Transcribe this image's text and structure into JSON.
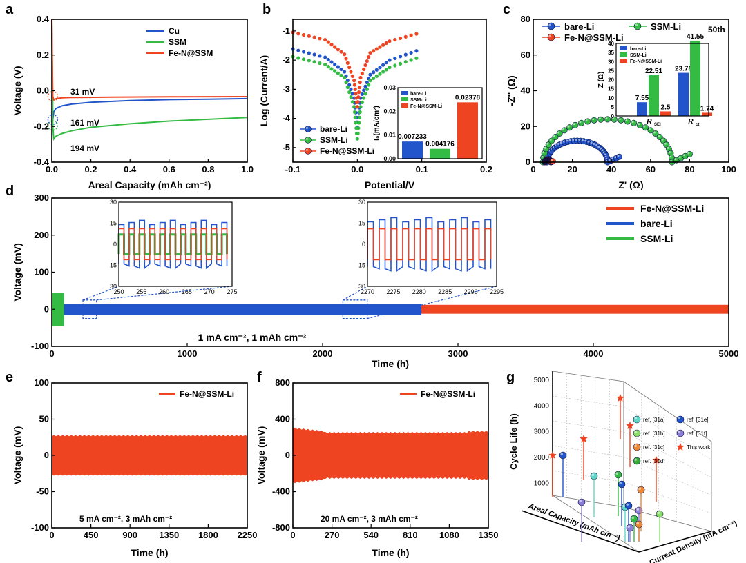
{
  "colors": {
    "cu": "#2255cc",
    "bare": "#2255cc",
    "ssm": "#33bb44",
    "fen": "#ee4422",
    "axis": "#000000"
  },
  "chart_data": [
    {
      "panel": "a",
      "type": "line",
      "xlabel": "Areal Capacity (mAh cm⁻²)",
      "ylabel": "Voltage (V)",
      "xlim": [
        0,
        1.0
      ],
      "ylim": [
        -0.4,
        0.4
      ],
      "xticks": [
        "0.0",
        "0.2",
        "0.4",
        "0.6",
        "0.8",
        "1.0"
      ],
      "yticks": [
        "-0.4",
        "-0.2",
        "0.0",
        "0.2",
        "0.4"
      ],
      "series": [
        {
          "name": "Cu",
          "x": [
            0,
            0.005,
            0.01,
            0.02,
            0.05,
            0.1,
            0.2,
            0.4,
            0.6,
            0.8,
            1.0
          ],
          "y": [
            0.4,
            -0.161,
            -0.12,
            -0.1,
            -0.085,
            -0.075,
            -0.065,
            -0.055,
            -0.05,
            -0.047,
            -0.044
          ]
        },
        {
          "name": "SSM",
          "x": [
            0,
            0.005,
            0.01,
            0.02,
            0.05,
            0.1,
            0.2,
            0.4,
            0.6,
            0.8,
            1.0
          ],
          "y": [
            0.4,
            -0.194,
            -0.27,
            -0.255,
            -0.24,
            -0.225,
            -0.205,
            -0.185,
            -0.17,
            -0.16,
            -0.15
          ]
        },
        {
          "name": "Fe-N@SSM",
          "x": [
            0,
            0.005,
            0.01,
            0.02,
            0.05,
            0.1,
            0.3,
            0.6,
            1.0
          ],
          "y": [
            0.4,
            -0.031,
            -0.05,
            -0.045,
            -0.04,
            -0.038,
            -0.036,
            -0.034,
            -0.033
          ]
        }
      ],
      "annotations": [
        "31 mV",
        "161 mV",
        "194 mV"
      ]
    },
    {
      "panel": "b",
      "type": "line",
      "xlabel": "Potential/V",
      "ylabel": "Log (Current/A)",
      "xlim": [
        -0.1,
        0.2
      ],
      "ylim": [
        -5.5,
        -0.6
      ],
      "xticks": [
        "-0.1",
        "0.0",
        "0.1",
        "0.2"
      ],
      "yticks": [
        "-1",
        "-2",
        "-3",
        "-4",
        "-5"
      ],
      "series": [
        {
          "name": "bare-Li",
          "x": [
            -0.1,
            -0.05,
            -0.02,
            -0.005,
            0,
            0.005,
            0.02,
            0.05,
            0.1
          ],
          "y": [
            -1.62,
            -1.9,
            -2.4,
            -3.3,
            -4.3,
            -3.3,
            -2.5,
            -2.0,
            -1.62
          ]
        },
        {
          "name": "SSM-Li",
          "x": [
            -0.1,
            -0.05,
            -0.02,
            -0.005,
            0,
            0.005,
            0.02,
            0.05,
            0.1
          ],
          "y": [
            -1.88,
            -2.15,
            -2.6,
            -3.6,
            -4.7,
            -3.6,
            -2.7,
            -2.25,
            -1.87
          ]
        },
        {
          "name": "Fe-N@SSM-Li",
          "x": [
            -0.1,
            -0.05,
            -0.02,
            -0.005,
            0,
            0.005,
            0.02,
            0.05,
            0.1
          ],
          "y": [
            -1.05,
            -1.3,
            -1.8,
            -2.7,
            -3.6,
            -2.6,
            -1.75,
            -1.35,
            -1.05
          ]
        }
      ],
      "inset": {
        "type": "bar",
        "ylabel": "I₀(mA/cm²)",
        "ylim": [
          0,
          0.03
        ],
        "yticks": [
          "0.00",
          "0.01",
          "0.02",
          "0.03"
        ],
        "categories": [
          "bare-Li",
          "SSM-Li",
          "Fe-N@SSM-Li"
        ],
        "values": [
          0.007233,
          0.004176,
          0.02378
        ],
        "labels": [
          "0.007233",
          "0.004176",
          "0.02378"
        ]
      }
    },
    {
      "panel": "c",
      "type": "scatter",
      "xlabel": "Z' (Ω)",
      "ylabel": "-Z'' (Ω)",
      "annotation": "50th",
      "xlim": [
        0,
        100
      ],
      "ylim": [
        0,
        80
      ],
      "xticks": [
        "0",
        "20",
        "40",
        "60",
        "80",
        "100"
      ],
      "yticks": [
        "0",
        "20",
        "40",
        "60",
        "80"
      ],
      "series": [
        {
          "name": "bare-Li",
          "arc": {
            "x0": 7,
            "x1": 38,
            "tail": 6
          }
        },
        {
          "name": "SSM-Li",
          "arc": {
            "x0": 5,
            "x1": 71,
            "tail": 9
          }
        },
        {
          "name": "Fe-N@SSM-Li",
          "arc": {
            "x0": 6,
            "x1": 9,
            "tail": 1
          }
        }
      ],
      "inset": {
        "type": "bar",
        "ylabel": "Z (Ω)",
        "ylim": [
          0,
          40
        ],
        "yticks": [
          "0",
          "5",
          "10",
          "15",
          "20",
          "25",
          "30",
          "35",
          "40"
        ],
        "groups": [
          "R_SEI",
          "R_ct"
        ],
        "group_labels": [
          {
            "main": "R",
            "sub": "SEI"
          },
          {
            "main": "R",
            "sub": "ct"
          }
        ],
        "series": [
          {
            "name": "bare-Li",
            "values": [
              7.55,
              23.78
            ],
            "labels": [
              "7.55",
              "23.78"
            ]
          },
          {
            "name": "SSM-Li",
            "values": [
              22.51,
              41.55
            ],
            "labels": [
              "22.51",
              "41.55"
            ]
          },
          {
            "name": "Fe-N@SSM-Li",
            "values": [
              2.5,
              1.74
            ],
            "labels": [
              "2.5",
              "1.74"
            ]
          }
        ]
      }
    },
    {
      "panel": "d",
      "type": "line",
      "xlabel": "Time (h)",
      "ylabel": "Voltage (mV)",
      "condition": "1 mA cm⁻², 1 mAh cm⁻²",
      "xlim": [
        0,
        5000
      ],
      "ylim": [
        -100,
        300
      ],
      "xticks": [
        "0",
        "1000",
        "2000",
        "3000",
        "4000",
        "5000"
      ],
      "yticks": [
        "-100",
        "0",
        "100",
        "200",
        "300"
      ],
      "series": [
        {
          "name": "Fe-N@SSM-Li",
          "end_h": 5000,
          "amplitude_mV": 12
        },
        {
          "name": "bare-Li",
          "end_h": 2730,
          "amplitude_mV": 15
        },
        {
          "name": "SSM-Li",
          "end_h": 80,
          "amplitude_mV": 45
        }
      ],
      "insets": [
        {
          "xlim": [
            250,
            275
          ],
          "xticks": [
            "250",
            "255",
            "260",
            "265",
            "270",
            "275"
          ],
          "yticks": [
            "30",
            "15",
            "0",
            "15",
            "30"
          ]
        },
        {
          "xlim": [
            2270,
            2295
          ],
          "xticks": [
            "2270",
            "2275",
            "2280",
            "2285",
            "2290",
            "2295"
          ],
          "yticks": [
            "30",
            "15",
            "0",
            "15",
            "30"
          ]
        }
      ]
    },
    {
      "panel": "e",
      "type": "line",
      "xlabel": "Time (h)",
      "ylabel": "Voltage (mV)",
      "condition": "5 mA cm⁻², 3 mAh cm⁻²",
      "xlim": [
        0,
        2250
      ],
      "ylim": [
        -100,
        100
      ],
      "xticks": [
        "0",
        "450",
        "900",
        "1350",
        "1800",
        "2250"
      ],
      "yticks": [
        "-100",
        "-50",
        "0",
        "50",
        "100"
      ],
      "series": [
        {
          "name": "Fe-N@SSM-Li",
          "amplitude_mV": 27
        }
      ]
    },
    {
      "panel": "f",
      "type": "line",
      "xlabel": "Time (h)",
      "ylabel": "Voltage (mV)",
      "condition": "20 mA cm⁻², 3 mAh cm⁻²",
      "xlim": [
        0,
        1350
      ],
      "ylim": [
        -800,
        800
      ],
      "xticks": [
        "0",
        "270",
        "540",
        "810",
        "1080",
        "1350"
      ],
      "yticks": [
        "-800",
        "-400",
        "0",
        "400",
        "800"
      ],
      "series": [
        {
          "name": "Fe-N@SSM-Li",
          "amplitude_mV": 250
        }
      ]
    },
    {
      "panel": "g",
      "type": "scatter3d",
      "xlabel": "Areal Capacity (mAh cm⁻²)",
      "ylabel": "Current Density (mA cm⁻²)",
      "zlabel": "Cycle Life (h)",
      "zticks": [
        "1000",
        "2000",
        "3000",
        "4000",
        "5000"
      ],
      "legend": [
        "ref. [31a]",
        "ref. [31b]",
        "ref. [31c]",
        "ref. [31d]",
        "ref. [31e]",
        "ref. [31f]",
        "This work"
      ]
    }
  ]
}
